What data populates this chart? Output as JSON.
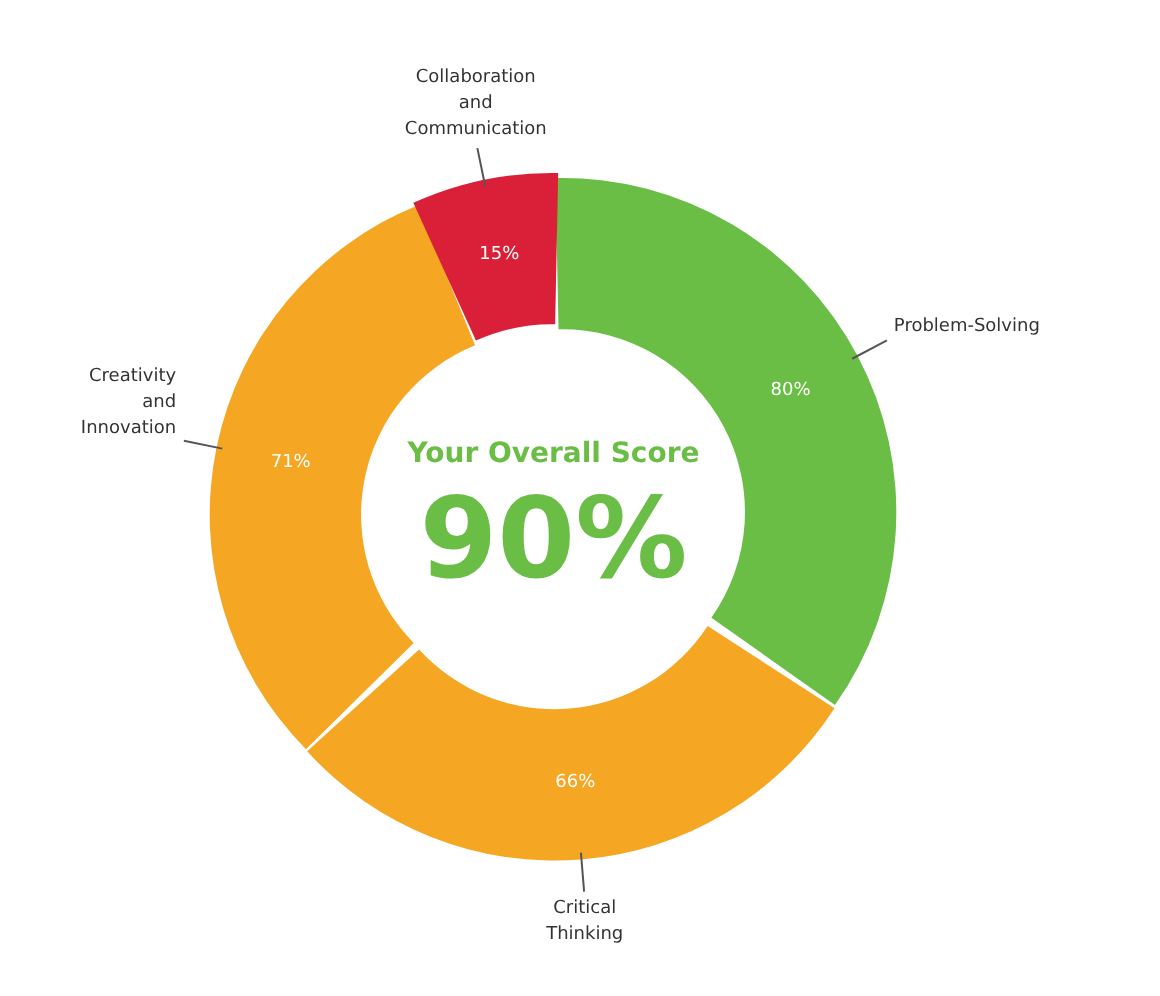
{
  "chart_data": {
    "type": "donut",
    "categories": [
      "Problem-Solving",
      "Critical\nThinking",
      "Creativity\nand\nInnovation",
      "Collaboration\nand\nCommunication"
    ],
    "values": [
      80,
      66,
      71,
      15
    ],
    "colors": [
      "#6abd45",
      "#f5a623",
      "#f5a623",
      "#d92038"
    ],
    "value_labels": [
      "80%",
      "66%",
      "71%",
      "15%"
    ],
    "annotations": [
      "Your Overall Score",
      "90%"
    ]
  }
}
